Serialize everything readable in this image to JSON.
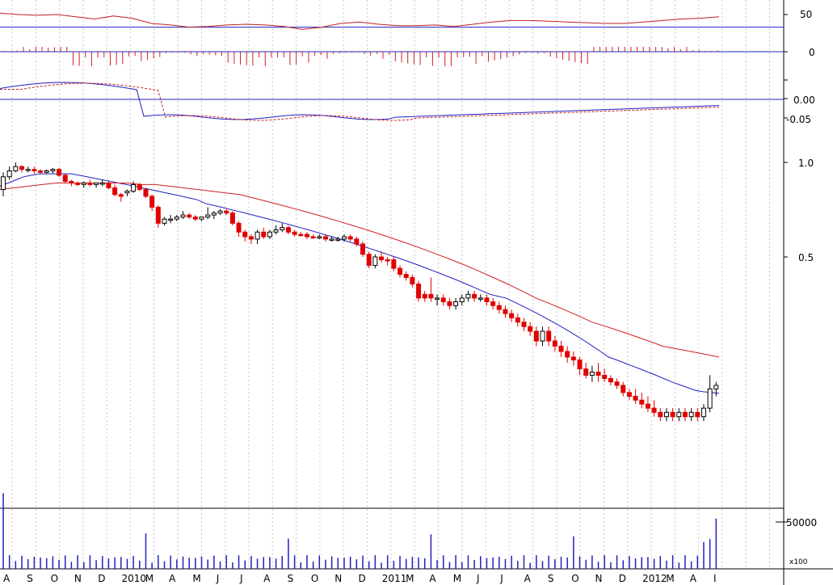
{
  "chart_data": {
    "type": "candlestick",
    "x_months": [
      "A",
      "S",
      "O",
      "N",
      "D",
      "2010",
      "M",
      "A",
      "M",
      "J",
      "J",
      "A",
      "S",
      "O",
      "N",
      "D",
      "2011",
      "M",
      "A",
      "M",
      "J",
      "J",
      "A",
      "S",
      "O",
      "N",
      "D",
      "2012",
      "M",
      "A",
      "I"
    ],
    "panels": {
      "oscillator": {
        "ticks": [
          "50",
          "0"
        ]
      },
      "macd": {
        "ticks": [
          "0.00",
          "-0.05"
        ]
      },
      "price": {
        "ticks": [
          "1.0",
          "0.5"
        ],
        "scale": "log"
      },
      "volume": {
        "ticks": [
          "50000"
        ],
        "unit_label": "x100"
      }
    },
    "price_candles": [
      {
        "o": 0.82,
        "h": 0.93,
        "l": 0.78,
        "c": 0.9,
        "up": true
      },
      {
        "o": 0.9,
        "h": 0.97,
        "l": 0.88,
        "c": 0.94,
        "up": true
      },
      {
        "o": 0.94,
        "h": 1.0,
        "l": 0.93,
        "c": 0.97,
        "up": true
      },
      {
        "o": 0.97,
        "h": 0.98,
        "l": 0.93,
        "c": 0.95,
        "up": false
      },
      {
        "o": 0.95,
        "h": 0.97,
        "l": 0.93,
        "c": 0.95,
        "up": true
      },
      {
        "o": 0.95,
        "h": 0.97,
        "l": 0.92,
        "c": 0.94,
        "up": false
      },
      {
        "o": 0.94,
        "h": 0.95,
        "l": 0.92,
        "c": 0.93,
        "up": false
      },
      {
        "o": 0.93,
        "h": 0.95,
        "l": 0.92,
        "c": 0.94,
        "up": true
      },
      {
        "o": 0.94,
        "h": 0.96,
        "l": 0.92,
        "c": 0.95,
        "up": true
      },
      {
        "o": 0.95,
        "h": 0.96,
        "l": 0.9,
        "c": 0.91,
        "up": false
      },
      {
        "o": 0.91,
        "h": 0.92,
        "l": 0.86,
        "c": 0.87,
        "up": false
      },
      {
        "o": 0.87,
        "h": 0.88,
        "l": 0.84,
        "c": 0.86,
        "up": false
      },
      {
        "o": 0.86,
        "h": 0.87,
        "l": 0.84,
        "c": 0.85,
        "up": false
      },
      {
        "o": 0.85,
        "h": 0.87,
        "l": 0.83,
        "c": 0.86,
        "up": true
      },
      {
        "o": 0.86,
        "h": 0.88,
        "l": 0.84,
        "c": 0.85,
        "up": false
      },
      {
        "o": 0.85,
        "h": 0.86,
        "l": 0.83,
        "c": 0.86,
        "up": true
      },
      {
        "o": 0.86,
        "h": 0.88,
        "l": 0.84,
        "c": 0.86,
        "up": true
      },
      {
        "o": 0.86,
        "h": 0.87,
        "l": 0.82,
        "c": 0.83,
        "up": false
      },
      {
        "o": 0.83,
        "h": 0.85,
        "l": 0.78,
        "c": 0.79,
        "up": false
      },
      {
        "o": 0.79,
        "h": 0.8,
        "l": 0.75,
        "c": 0.78,
        "up": false
      },
      {
        "o": 0.8,
        "h": 0.82,
        "l": 0.78,
        "c": 0.81,
        "up": true
      },
      {
        "o": 0.81,
        "h": 0.87,
        "l": 0.8,
        "c": 0.85,
        "up": true
      },
      {
        "o": 0.85,
        "h": 0.86,
        "l": 0.81,
        "c": 0.82,
        "up": false
      },
      {
        "o": 0.82,
        "h": 0.83,
        "l": 0.77,
        "c": 0.78,
        "up": false
      },
      {
        "o": 0.78,
        "h": 0.79,
        "l": 0.7,
        "c": 0.72,
        "up": false
      },
      {
        "o": 0.72,
        "h": 0.73,
        "l": 0.62,
        "c": 0.64,
        "up": false
      },
      {
        "o": 0.64,
        "h": 0.67,
        "l": 0.63,
        "c": 0.66,
        "up": true
      },
      {
        "o": 0.66,
        "h": 0.68,
        "l": 0.64,
        "c": 0.66,
        "up": true
      },
      {
        "o": 0.66,
        "h": 0.68,
        "l": 0.65,
        "c": 0.67,
        "up": true
      },
      {
        "o": 0.67,
        "h": 0.7,
        "l": 0.66,
        "c": 0.68,
        "up": true
      },
      {
        "o": 0.68,
        "h": 0.69,
        "l": 0.66,
        "c": 0.67,
        "up": false
      },
      {
        "o": 0.67,
        "h": 0.68,
        "l": 0.65,
        "c": 0.66,
        "up": false
      },
      {
        "o": 0.66,
        "h": 0.67,
        "l": 0.65,
        "c": 0.67,
        "up": true
      },
      {
        "o": 0.67,
        "h": 0.72,
        "l": 0.66,
        "c": 0.68,
        "up": true
      },
      {
        "o": 0.68,
        "h": 0.7,
        "l": 0.66,
        "c": 0.69,
        "up": true
      },
      {
        "o": 0.69,
        "h": 0.71,
        "l": 0.68,
        "c": 0.7,
        "up": true
      },
      {
        "o": 0.7,
        "h": 0.71,
        "l": 0.68,
        "c": 0.69,
        "up": false
      },
      {
        "o": 0.69,
        "h": 0.7,
        "l": 0.63,
        "c": 0.64,
        "up": false
      },
      {
        "o": 0.64,
        "h": 0.65,
        "l": 0.58,
        "c": 0.6,
        "up": false
      },
      {
        "o": 0.6,
        "h": 0.61,
        "l": 0.56,
        "c": 0.58,
        "up": false
      },
      {
        "o": 0.58,
        "h": 0.59,
        "l": 0.55,
        "c": 0.57,
        "up": false
      },
      {
        "o": 0.57,
        "h": 0.61,
        "l": 0.55,
        "c": 0.6,
        "up": true
      },
      {
        "o": 0.6,
        "h": 0.62,
        "l": 0.57,
        "c": 0.58,
        "up": false
      },
      {
        "o": 0.58,
        "h": 0.61,
        "l": 0.57,
        "c": 0.6,
        "up": true
      },
      {
        "o": 0.6,
        "h": 0.63,
        "l": 0.59,
        "c": 0.61,
        "up": true
      },
      {
        "o": 0.61,
        "h": 0.64,
        "l": 0.6,
        "c": 0.62,
        "up": true
      },
      {
        "o": 0.62,
        "h": 0.63,
        "l": 0.59,
        "c": 0.6,
        "up": false
      },
      {
        "o": 0.6,
        "h": 0.61,
        "l": 0.58,
        "c": 0.59,
        "up": false
      },
      {
        "o": 0.59,
        "h": 0.6,
        "l": 0.58,
        "c": 0.59,
        "up": false
      },
      {
        "o": 0.59,
        "h": 0.6,
        "l": 0.57,
        "c": 0.58,
        "up": false
      },
      {
        "o": 0.58,
        "h": 0.59,
        "l": 0.57,
        "c": 0.58,
        "up": false
      },
      {
        "o": 0.58,
        "h": 0.59,
        "l": 0.57,
        "c": 0.58,
        "up": true
      },
      {
        "o": 0.58,
        "h": 0.59,
        "l": 0.56,
        "c": 0.57,
        "up": false
      },
      {
        "o": 0.57,
        "h": 0.58,
        "l": 0.56,
        "c": 0.57,
        "up": true
      },
      {
        "o": 0.57,
        "h": 0.58,
        "l": 0.56,
        "c": 0.57,
        "up": true
      },
      {
        "o": 0.57,
        "h": 0.59,
        "l": 0.56,
        "c": 0.58,
        "up": true
      },
      {
        "o": 0.58,
        "h": 0.59,
        "l": 0.56,
        "c": 0.57,
        "up": false
      },
      {
        "o": 0.57,
        "h": 0.58,
        "l": 0.54,
        "c": 0.55,
        "up": false
      },
      {
        "o": 0.55,
        "h": 0.56,
        "l": 0.5,
        "c": 0.51,
        "up": false
      },
      {
        "o": 0.51,
        "h": 0.52,
        "l": 0.46,
        "c": 0.47,
        "up": false
      },
      {
        "o": 0.47,
        "h": 0.51,
        "l": 0.46,
        "c": 0.5,
        "up": true
      },
      {
        "o": 0.5,
        "h": 0.52,
        "l": 0.48,
        "c": 0.49,
        "up": false
      },
      {
        "o": 0.49,
        "h": 0.5,
        "l": 0.47,
        "c": 0.49,
        "up": false
      },
      {
        "o": 0.49,
        "h": 0.5,
        "l": 0.45,
        "c": 0.46,
        "up": false
      },
      {
        "o": 0.46,
        "h": 0.47,
        "l": 0.43,
        "c": 0.44,
        "up": false
      },
      {
        "o": 0.44,
        "h": 0.45,
        "l": 0.42,
        "c": 0.43,
        "up": false
      },
      {
        "o": 0.43,
        "h": 0.44,
        "l": 0.4,
        "c": 0.41,
        "up": false
      },
      {
        "o": 0.41,
        "h": 0.42,
        "l": 0.36,
        "c": 0.37,
        "up": false
      },
      {
        "o": 0.37,
        "h": 0.39,
        "l": 0.36,
        "c": 0.38,
        "up": false
      },
      {
        "o": 0.38,
        "h": 0.43,
        "l": 0.36,
        "c": 0.37,
        "up": false
      },
      {
        "o": 0.37,
        "h": 0.38,
        "l": 0.35,
        "c": 0.37,
        "up": true
      },
      {
        "o": 0.37,
        "h": 0.38,
        "l": 0.35,
        "c": 0.36,
        "up": false
      },
      {
        "o": 0.36,
        "h": 0.37,
        "l": 0.34,
        "c": 0.35,
        "up": false
      },
      {
        "o": 0.35,
        "h": 0.37,
        "l": 0.34,
        "c": 0.36,
        "up": true
      },
      {
        "o": 0.36,
        "h": 0.38,
        "l": 0.35,
        "c": 0.37,
        "up": true
      },
      {
        "o": 0.37,
        "h": 0.39,
        "l": 0.36,
        "c": 0.38,
        "up": true
      },
      {
        "o": 0.38,
        "h": 0.39,
        "l": 0.36,
        "c": 0.37,
        "up": false
      },
      {
        "o": 0.37,
        "h": 0.38,
        "l": 0.36,
        "c": 0.37,
        "up": true
      },
      {
        "o": 0.37,
        "h": 0.38,
        "l": 0.35,
        "c": 0.36,
        "up": false
      },
      {
        "o": 0.36,
        "h": 0.37,
        "l": 0.34,
        "c": 0.35,
        "up": false
      },
      {
        "o": 0.35,
        "h": 0.36,
        "l": 0.33,
        "c": 0.34,
        "up": false
      },
      {
        "o": 0.34,
        "h": 0.35,
        "l": 0.32,
        "c": 0.33,
        "up": false
      },
      {
        "o": 0.33,
        "h": 0.34,
        "l": 0.31,
        "c": 0.32,
        "up": false
      },
      {
        "o": 0.32,
        "h": 0.33,
        "l": 0.3,
        "c": 0.31,
        "up": false
      },
      {
        "o": 0.31,
        "h": 0.32,
        "l": 0.29,
        "c": 0.3,
        "up": false
      },
      {
        "o": 0.3,
        "h": 0.31,
        "l": 0.28,
        "c": 0.29,
        "up": false
      },
      {
        "o": 0.29,
        "h": 0.3,
        "l": 0.26,
        "c": 0.27,
        "up": false
      },
      {
        "o": 0.27,
        "h": 0.3,
        "l": 0.26,
        "c": 0.29,
        "up": true
      },
      {
        "o": 0.29,
        "h": 0.3,
        "l": 0.26,
        "c": 0.27,
        "up": false
      },
      {
        "o": 0.27,
        "h": 0.28,
        "l": 0.25,
        "c": 0.26,
        "up": false
      },
      {
        "o": 0.26,
        "h": 0.27,
        "l": 0.24,
        "c": 0.25,
        "up": false
      },
      {
        "o": 0.25,
        "h": 0.26,
        "l": 0.23,
        "c": 0.24,
        "up": false
      },
      {
        "o": 0.24,
        "h": 0.25,
        "l": 0.225,
        "c": 0.235,
        "up": false
      },
      {
        "o": 0.235,
        "h": 0.24,
        "l": 0.21,
        "c": 0.22,
        "up": false
      },
      {
        "o": 0.22,
        "h": 0.23,
        "l": 0.205,
        "c": 0.21,
        "up": false
      },
      {
        "o": 0.21,
        "h": 0.225,
        "l": 0.2,
        "c": 0.215,
        "up": true
      },
      {
        "o": 0.215,
        "h": 0.23,
        "l": 0.2,
        "c": 0.21,
        "up": false
      },
      {
        "o": 0.21,
        "h": 0.22,
        "l": 0.2,
        "c": 0.205,
        "up": false
      },
      {
        "o": 0.205,
        "h": 0.21,
        "l": 0.195,
        "c": 0.2,
        "up": false
      },
      {
        "o": 0.2,
        "h": 0.205,
        "l": 0.19,
        "c": 0.195,
        "up": false
      },
      {
        "o": 0.195,
        "h": 0.2,
        "l": 0.18,
        "c": 0.185,
        "up": false
      },
      {
        "o": 0.185,
        "h": 0.19,
        "l": 0.175,
        "c": 0.18,
        "up": false
      },
      {
        "o": 0.18,
        "h": 0.19,
        "l": 0.17,
        "c": 0.175,
        "up": false
      },
      {
        "o": 0.175,
        "h": 0.185,
        "l": 0.165,
        "c": 0.17,
        "up": false
      },
      {
        "o": 0.17,
        "h": 0.18,
        "l": 0.16,
        "c": 0.165,
        "up": false
      },
      {
        "o": 0.165,
        "h": 0.175,
        "l": 0.155,
        "c": 0.16,
        "up": false
      },
      {
        "o": 0.16,
        "h": 0.165,
        "l": 0.15,
        "c": 0.155,
        "up": false
      },
      {
        "o": 0.155,
        "h": 0.165,
        "l": 0.15,
        "c": 0.16,
        "up": true
      },
      {
        "o": 0.16,
        "h": 0.165,
        "l": 0.15,
        "c": 0.155,
        "up": false
      },
      {
        "o": 0.155,
        "h": 0.165,
        "l": 0.15,
        "c": 0.16,
        "up": true
      },
      {
        "o": 0.16,
        "h": 0.165,
        "l": 0.15,
        "c": 0.155,
        "up": false
      },
      {
        "o": 0.155,
        "h": 0.165,
        "l": 0.15,
        "c": 0.16,
        "up": true
      },
      {
        "o": 0.16,
        "h": 0.165,
        "l": 0.15,
        "c": 0.155,
        "up": false
      },
      {
        "o": 0.155,
        "h": 0.17,
        "l": 0.15,
        "c": 0.165,
        "up": true
      },
      {
        "o": 0.165,
        "h": 0.21,
        "l": 0.16,
        "c": 0.19,
        "up": true
      },
      {
        "o": 0.19,
        "h": 0.2,
        "l": 0.18,
        "c": 0.195,
        "up": true
      }
    ],
    "ma_short": [
      0.84,
      0.86,
      0.88,
      0.9,
      0.91,
      0.92,
      0.92,
      0.92,
      0.92,
      0.92,
      0.91,
      0.9,
      0.89,
      0.88,
      0.87,
      0.86,
      0.85,
      0.84,
      0.83,
      0.82,
      0.81,
      0.8,
      0.79,
      0.78,
      0.77,
      0.76,
      0.74,
      0.73,
      0.72,
      0.71,
      0.7,
      0.69,
      0.68,
      0.67,
      0.66,
      0.65,
      0.64,
      0.63,
      0.62,
      0.61,
      0.6,
      0.59,
      0.58,
      0.57,
      0.56,
      0.55,
      0.54,
      0.53,
      0.52,
      0.51,
      0.5,
      0.49,
      0.48,
      0.47,
      0.46,
      0.45,
      0.44,
      0.43,
      0.42,
      0.41,
      0.4,
      0.39,
      0.38,
      0.375,
      0.37,
      0.36,
      0.35,
      0.34,
      0.33,
      0.32,
      0.31,
      0.3,
      0.29,
      0.28,
      0.27,
      0.26,
      0.25,
      0.24,
      0.235,
      0.23,
      0.225,
      0.22,
      0.215,
      0.21,
      0.205,
      0.2,
      0.196,
      0.192,
      0.188,
      0.186,
      0.185,
      0.184
    ],
    "ma_long": [
      0.82,
      0.83,
      0.84,
      0.85,
      0.86,
      0.86,
      0.86,
      0.86,
      0.86,
      0.86,
      0.85,
      0.85,
      0.84,
      0.83,
      0.82,
      0.81,
      0.8,
      0.79,
      0.77,
      0.75,
      0.73,
      0.71,
      0.69,
      0.67,
      0.65,
      0.63,
      0.61,
      0.59,
      0.57,
      0.55,
      0.53,
      0.51,
      0.49,
      0.47,
      0.45,
      0.43,
      0.41,
      0.39,
      0.37,
      0.355,
      0.34,
      0.325,
      0.31,
      0.3,
      0.29,
      0.28,
      0.27,
      0.26,
      0.255,
      0.25,
      0.245,
      0.24
    ],
    "osc_values": [
      52,
      50,
      49,
      50,
      47,
      44,
      48,
      45,
      38,
      36,
      33,
      34,
      36,
      37,
      36,
      34,
      30,
      33,
      38,
      40,
      37,
      35,
      35,
      36,
      34,
      37,
      40,
      42,
      42,
      41,
      40,
      39,
      38,
      38,
      40,
      42,
      44,
      45,
      47
    ],
    "osc_level": 33,
    "volume_max": 50000
  }
}
